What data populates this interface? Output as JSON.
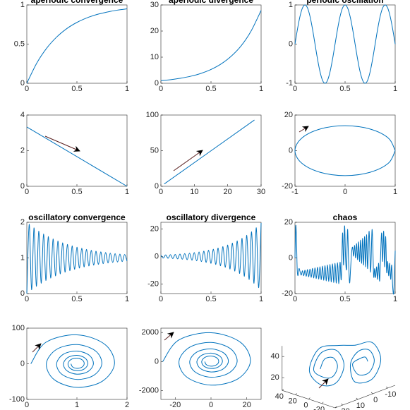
{
  "chart_data": [
    {
      "type": "line",
      "title": "aperiodic convergence",
      "x": [
        0,
        0.1,
        0.2,
        0.3,
        0.4,
        0.5,
        0.6,
        0.7,
        0.8,
        0.9,
        1
      ],
      "values": [
        0,
        0.259,
        0.451,
        0.593,
        0.699,
        0.777,
        0.835,
        0.878,
        0.909,
        0.933,
        0.95
      ],
      "xlim": [
        0,
        1
      ],
      "ylim": [
        0,
        1
      ],
      "xticks": [
        0,
        0.5,
        1
      ],
      "yticks": [
        0,
        0.5,
        1
      ],
      "color": "#0072bd"
    },
    {
      "type": "line",
      "title": "aperiodic divergence",
      "x": [
        0,
        0.1,
        0.2,
        0.3,
        0.4,
        0.5,
        0.6,
        0.7,
        0.8,
        0.9,
        1
      ],
      "values": [
        1,
        1.4,
        1.95,
        2.72,
        3.79,
        5.29,
        7.38,
        10.3,
        14.3,
        20,
        27.9
      ],
      "xlim": [
        0,
        1
      ],
      "ylim": [
        0,
        30
      ],
      "xticks": [
        0,
        0.5,
        1
      ],
      "yticks": [
        0,
        10,
        20,
        30
      ],
      "color": "#0072bd"
    },
    {
      "type": "line",
      "title": "periodic oscillation",
      "x": [
        0,
        0.025,
        0.05,
        0.075,
        0.1,
        0.125,
        0.15,
        0.175,
        0.2,
        0.225,
        0.25,
        0.275,
        0.3,
        0.325,
        0.35,
        0.375,
        0.4,
        0.425,
        0.45,
        0.475,
        0.5,
        0.525,
        0.55,
        0.575,
        0.6,
        0.625,
        0.65,
        0.675,
        0.7,
        0.725,
        0.75,
        0.775,
        0.8,
        0.825,
        0.85,
        0.875,
        0.9,
        0.925,
        0.95,
        0.975,
        1
      ],
      "values": [
        0,
        0.383,
        0.707,
        0.924,
        1,
        0.924,
        0.707,
        0.383,
        0,
        -0.383,
        -0.707,
        -0.924,
        -1,
        -0.924,
        -0.707,
        -0.383,
        0,
        0.383,
        0.707,
        0.924,
        1,
        0.924,
        0.707,
        0.383,
        0,
        -0.383,
        -0.707,
        -0.924,
        -1,
        -0.924,
        -0.707,
        -0.383,
        0,
        0.383,
        0.707,
        0.924,
        1,
        0.924,
        0.707,
        0.383,
        0
      ],
      "xlim": [
        0,
        1
      ],
      "ylim": [
        -1,
        1
      ],
      "xticks": [
        0,
        0.5,
        1
      ],
      "yticks": [
        -1,
        0,
        1
      ],
      "color": "#0072bd"
    },
    {
      "type": "line",
      "x": [
        0,
        1
      ],
      "values": [
        3.33,
        0
      ],
      "xlim": [
        0,
        1
      ],
      "ylim": [
        0,
        4
      ],
      "xticks": [
        0,
        0.5,
        1
      ],
      "yticks": [
        0,
        2,
        4
      ],
      "color": "#0072bd"
    },
    {
      "type": "line",
      "x": [
        1,
        28
      ],
      "values": [
        3.3,
        93
      ],
      "xlim": [
        0,
        30
      ],
      "ylim": [
        0,
        100
      ],
      "xticks": [
        0,
        10,
        20,
        30
      ],
      "yticks": [
        0,
        50,
        100
      ],
      "color": "#0072bd"
    },
    {
      "type": "line",
      "x": [
        1,
        0.866,
        0.5,
        0,
        -0.5,
        -0.866,
        -1,
        -0.866,
        -0.5,
        0,
        0.5,
        0.866,
        1
      ],
      "values": [
        0,
        7,
        12.12,
        14,
        12.12,
        7,
        0,
        -7,
        -12.12,
        -14,
        -12.12,
        -7,
        0
      ],
      "xlim": [
        -1,
        1
      ],
      "ylim": [
        -20,
        20
      ],
      "xticks": [
        -1,
        0,
        1
      ],
      "yticks": [
        -20,
        0,
        20
      ],
      "color": "#0072bd"
    },
    {
      "type": "line",
      "title": "oscillatory convergence",
      "x": [
        0,
        0.0238,
        0.0476,
        0.0714,
        0.0952,
        0.119,
        0.143,
        0.167,
        0.19,
        0.214,
        0.238,
        0.262,
        0.286,
        0.31,
        0.333,
        0.357,
        0.381,
        0.405,
        0.429,
        0.452,
        0.476,
        0.5,
        0.524,
        0.548,
        0.571,
        0.595,
        0.619,
        0.643,
        0.667,
        0.69,
        0.714,
        0.738,
        0.762,
        0.786,
        0.81,
        0.833,
        0.857,
        0.881,
        0.905,
        0.929,
        0.952,
        0.976,
        1
      ],
      "values": [
        0,
        1.944,
        0.108,
        1.843,
        0.204,
        1.751,
        0.29,
        1.67,
        0.367,
        1.598,
        0.435,
        1.533,
        0.496,
        1.476,
        0.551,
        1.424,
        0.599,
        1.379,
        0.642,
        1.338,
        0.681,
        1.301,
        0.715,
        1.269,
        0.746,
        1.24,
        0.774,
        1.214,
        0.798,
        1.191,
        0.82,
        1.17,
        0.839,
        1.152,
        0.857,
        1.135,
        0.872,
        1.121,
        0.886,
        1.108,
        0.898,
        1.096,
        0.909
      ],
      "xlim": [
        0,
        1
      ],
      "ylim": [
        0,
        2
      ],
      "xticks": [
        0,
        0.5,
        1
      ],
      "yticks": [
        0,
        1,
        2
      ],
      "color": "#0072bd"
    },
    {
      "type": "line",
      "title": "oscillatory divergence",
      "x": [
        0,
        0.0238,
        0.0476,
        0.0714,
        0.0952,
        0.119,
        0.143,
        0.167,
        0.19,
        0.214,
        0.238,
        0.262,
        0.286,
        0.31,
        0.333,
        0.357,
        0.381,
        0.405,
        0.429,
        0.452,
        0.476,
        0.5,
        0.524,
        0.548,
        0.571,
        0.595,
        0.619,
        0.643,
        0.667,
        0.69,
        0.714,
        0.738,
        0.762,
        0.786,
        0.81,
        0.833,
        0.857,
        0.881,
        0.905,
        0.929,
        0.952,
        0.976,
        1
      ],
      "values": [
        1,
        -1.079,
        1.164,
        -1.257,
        1.356,
        -1.463,
        1.579,
        -1.704,
        1.839,
        -1.984,
        2.141,
        -2.311,
        2.494,
        -2.691,
        2.904,
        -3.134,
        3.382,
        -3.649,
        3.938,
        -4.25,
        4.586,
        -4.949,
        5.341,
        -5.763,
        6.219,
        -6.711,
        7.242,
        -7.815,
        8.434,
        -9.101,
        9.821,
        -10.6,
        11.44,
        -12.34,
        13.32,
        -14.37,
        15.51,
        -16.74,
        18.06,
        -19.49,
        21.03,
        -22.7,
        24.49
      ],
      "xlim": [
        0,
        1
      ],
      "ylim": [
        -27,
        25
      ],
      "xticks": [
        0,
        0.5,
        1
      ],
      "yticks": [
        -20,
        0,
        20
      ],
      "color": "#0072bd"
    },
    {
      "type": "line",
      "title": "chaos",
      "x": [
        0,
        0.008,
        0.015,
        0.022,
        0.03,
        0.04,
        0.05,
        0.0625,
        0.075,
        0.0875,
        0.1,
        0.1125,
        0.125,
        0.1375,
        0.15,
        0.1625,
        0.175,
        0.1875,
        0.2,
        0.2125,
        0.225,
        0.2375,
        0.25,
        0.2625,
        0.275,
        0.2875,
        0.3,
        0.3125,
        0.325,
        0.3375,
        0.35,
        0.3625,
        0.375,
        0.3875,
        0.4,
        0.4125,
        0.425,
        0.4375,
        0.45,
        0.462,
        0.475,
        0.485,
        0.495,
        0.505,
        0.515,
        0.525,
        0.535,
        0.545,
        0.555,
        0.565,
        0.575,
        0.585,
        0.595,
        0.605,
        0.615,
        0.625,
        0.635,
        0.645,
        0.655,
        0.665,
        0.675,
        0.685,
        0.695,
        0.705,
        0.715,
        0.725,
        0.74,
        0.755,
        0.77,
        0.785,
        0.795,
        0.805,
        0.815,
        0.825,
        0.835,
        0.845,
        0.855,
        0.865,
        0.875,
        0.885,
        0.895,
        0.905,
        0.915,
        0.925,
        0.935,
        0.945,
        0.955,
        0.965,
        0.975,
        0.985,
        0.993,
        1
      ],
      "values": [
        0,
        18,
        10,
        -6,
        -10,
        -6,
        -7.5,
        -9.66,
        -7.18,
        -9.98,
        -6.86,
        -10.3,
        -6.54,
        -10.62,
        -6.22,
        -10.94,
        -5.9,
        -11.26,
        -5.58,
        -11.58,
        -5.26,
        -11.9,
        -4.94,
        -12.22,
        -4.62,
        -12.54,
        -4.3,
        -12.86,
        -3.98,
        -13.18,
        -3.66,
        -13.5,
        -3.34,
        -13.82,
        -3.02,
        -14.14,
        -2.7,
        -14.46,
        -2.38,
        -12,
        14,
        -4,
        18,
        0,
        -6,
        16,
        -2,
        -14,
        -6,
        3,
        6,
        1,
        7,
        0,
        8,
        -1,
        9,
        -2,
        10,
        -3,
        11,
        -4,
        12,
        -5,
        13,
        -6,
        15,
        -8,
        16,
        -10,
        -6,
        -11,
        -5,
        -12,
        -3,
        -13,
        2,
        14,
        -2,
        15,
        -5,
        12,
        -8,
        -2,
        -10,
        -3,
        -12,
        -4,
        -16,
        -20,
        -8,
        4
      ],
      "xlim": [
        0,
        1
      ],
      "ylim": [
        -20,
        20
      ],
      "xticks": [
        0,
        0.5,
        1
      ],
      "yticks": [
        -20,
        0,
        20
      ],
      "color": "#0072bd"
    },
    {
      "type": "line",
      "x": [
        0.08,
        0.382,
        1,
        1.557,
        1.75,
        1.503,
        1,
        0.546,
        0.39,
        0.59,
        1,
        1.37,
        1.497,
        1.334,
        1,
        0.699,
        0.595,
        0.728,
        1,
        1.245,
        1.329,
        1.222,
        1,
        0.8,
        0.731,
        0.82,
        1,
        1.163,
        1.219,
        1.147,
        1,
        0.867,
        0.822,
        0.88,
        1,
        1.108,
        1.145,
        1.098,
        1,
        0.912,
        0.881
      ],
      "values": [
        0,
        60.4,
        81.3,
        54.5,
        0,
        -49.3,
        -66.2,
        -44.4,
        0,
        40.1,
        53.9,
        36.2,
        0,
        -32.6,
        -43.9,
        -29.5,
        0,
        26.6,
        35.7,
        24,
        0,
        -21.7,
        -29.2,
        -19.5,
        0,
        17.6,
        23.8,
        15.9,
        0,
        -14.4,
        -19.4,
        -13,
        0,
        11.7,
        15.8,
        10.6,
        0,
        -9.5,
        -12.8,
        -8.6,
        0
      ],
      "xlim": [
        0,
        2
      ],
      "ylim": [
        -100,
        100
      ],
      "xticks": [
        0,
        1,
        2
      ],
      "yticks": [
        -100,
        0,
        100
      ],
      "color": "#0072bd"
    },
    {
      "type": "line",
      "x": [
        -27,
        -18.1,
        0,
        16.4,
        22,
        14.8,
        0,
        -13.3,
        -17.9,
        -12,
        0,
        10.9,
        14.6,
        9.8,
        0,
        -8.8,
        -11.9,
        -8,
        0,
        7.2,
        9.7,
        6.5,
        0,
        -5.9,
        -7.9,
        -5.3,
        0,
        4.8,
        6.4,
        4.3,
        0,
        -3.9,
        -5.2,
        -3.5,
        0,
        3.2,
        4.3,
        2.9,
        0,
        -2.6,
        -3.5
      ],
      "values": [
        0,
        1477,
        1987,
        1333,
        0,
        -1204,
        -1617,
        -1085,
        0,
        980,
        1318,
        885,
        0,
        -798,
        -1074,
        -720,
        0,
        650,
        873,
        586,
        0,
        -530,
        -713,
        -477,
        0,
        431,
        581,
        389,
        0,
        -351,
        -473,
        -317,
        0,
        286,
        385,
        258,
        0,
        -233,
        -312,
        -210,
        0
      ],
      "xlim": [
        -28,
        28
      ],
      "ylim": [
        -2600,
        2300
      ],
      "xticks": [
        -20,
        0,
        20
      ],
      "yticks": [
        -2000,
        0,
        2000
      ],
      "color": "#0072bd"
    },
    {
      "type": "line3d",
      "x": [
        12,
        10,
        6,
        4,
        6,
        10,
        15,
        11.5,
        4.5,
        1,
        4.5,
        11.5,
        17,
        12.5,
        3.5,
        -4,
        -12,
        -16,
        -12,
        -4,
        -2,
        -5.5,
        -10.5,
        -13,
        -10.5,
        -5.5,
        -3,
        -7,
        -9,
        -10
      ],
      "y": [
        12,
        10,
        6,
        4,
        6,
        10,
        15,
        11.5,
        4.5,
        1,
        4.5,
        11.5,
        17,
        12.5,
        3.5,
        -4,
        -12,
        -16,
        -12,
        -4,
        -2,
        -5.5,
        -10.5,
        -13,
        -10.5,
        -5.5,
        -3,
        -7,
        -9,
        -10
      ],
      "z": [
        27,
        35.7,
        35.7,
        27,
        18.3,
        18.3,
        27,
        42.2,
        42.2,
        27,
        11.8,
        11.8,
        27,
        46.5,
        46.5,
        44.3,
        44.3,
        27,
        9.7,
        9.7,
        27,
        37.8,
        37.8,
        27,
        16.2,
        16.2,
        27,
        31.3,
        31.3,
        27
      ],
      "xlim": [
        -40,
        40
      ],
      "ylim": [
        -15,
        25
      ],
      "zlim": [
        8,
        50
      ],
      "xticks": [
        -40,
        -20,
        0,
        20,
        40
      ],
      "yticks": [
        -10,
        0,
        10,
        20
      ],
      "zticks": [
        20,
        40
      ],
      "color": "#0072bd"
    }
  ]
}
